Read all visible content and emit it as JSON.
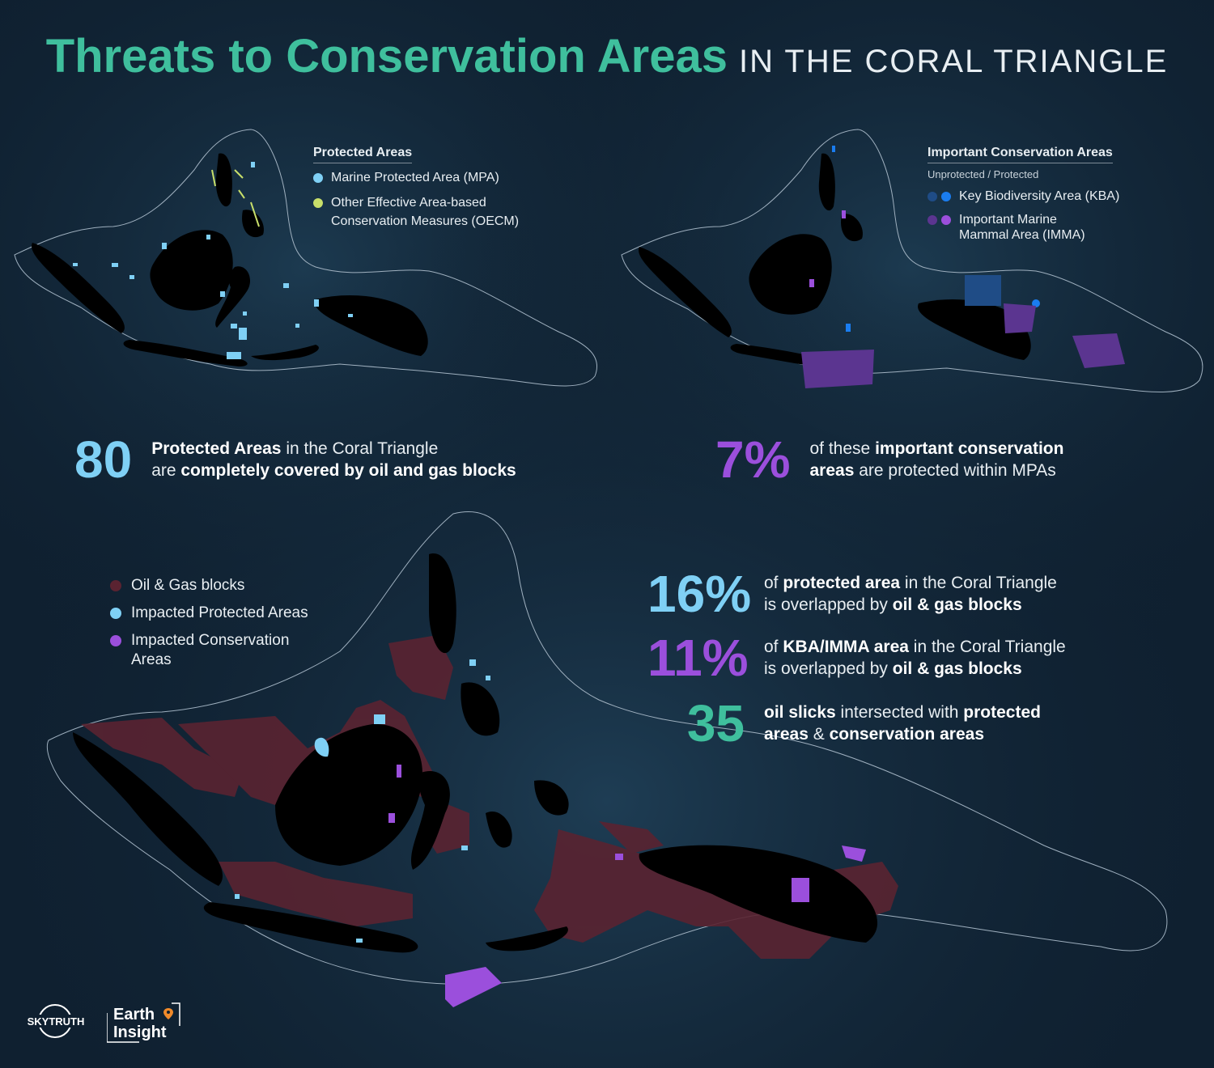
{
  "title": {
    "main": "Threats to Conservation Areas",
    "sub": "IN THE CORAL TRIANGLE"
  },
  "map_protected": {
    "legend_title": "Protected Areas",
    "items": [
      {
        "label": "Marine Protected Area (MPA)",
        "color": "#7fd0f5"
      },
      {
        "label": "Other Effective Area-based Conservation Measures (OECM)",
        "color": "#c8df6a"
      }
    ]
  },
  "map_conservation": {
    "legend_title": "Important Conservation Areas",
    "legend_subtitle": "Unprotected / Protected",
    "items": [
      {
        "label": "Key Biodiversity Area (KBA)",
        "color_unprotected": "#1f4c86",
        "color_protected": "#1a7df0"
      },
      {
        "label": "Important Marine Mammal Area (IMMA)",
        "color_unprotected": "#5b3590",
        "color_protected": "#9b4fdc"
      }
    ]
  },
  "map_threats": {
    "items": [
      {
        "label": "Oil & Gas blocks",
        "color": "#5a2331"
      },
      {
        "label": "Impacted Protected Areas",
        "color": "#7fd0f5"
      },
      {
        "label": "Impacted Conservation Areas",
        "color": "#9b4fdc"
      }
    ]
  },
  "stats": {
    "protected_blocks": {
      "value": "80",
      "line1_highlight": "Protected Areas",
      "line1_rest": " in the Coral Triangle",
      "line2_pre": "are ",
      "line2_bold": "completely covered by oil and gas blocks"
    },
    "imp_protected": {
      "value": "7%",
      "line1_pre": "of these ",
      "line1_highlight": "important conservation",
      "line2_highlight": "areas",
      "line2_rest": " are protected within MPAs"
    },
    "pa_overlap": {
      "value": "16%",
      "line1_pre": "of ",
      "line1_bold": "protected area",
      "line1_rest": " in the Coral Triangle",
      "line2_pre": "is overlapped by ",
      "line2_bold": "oil & gas blocks"
    },
    "kba_overlap": {
      "value": "11%",
      "line1_pre": "of ",
      "line1_bold": "KBA/IMMA area",
      "line1_rest": " in the Coral Triangle",
      "line2_pre": "is overlapped by ",
      "line2_bold": "oil & gas blocks"
    },
    "slicks": {
      "value": "35",
      "line1_bold": "oil slicks",
      "line1_mid": " intersected with ",
      "line1_bold2": "protected",
      "line2_bold": "areas",
      "line2_mid": " & ",
      "line2_bold2": "conservation areas"
    }
  },
  "logos": {
    "skytruth": "SKYTRUTH",
    "earth_line1": "Earth",
    "earth_line2": "Insight"
  },
  "colors": {
    "background": "#0f2030",
    "land": "#000000",
    "title_accent": "#3fbf9d",
    "oil_gas": "#5a2331",
    "mpa": "#7fd0f5",
    "imma": "#9b4fdc"
  }
}
